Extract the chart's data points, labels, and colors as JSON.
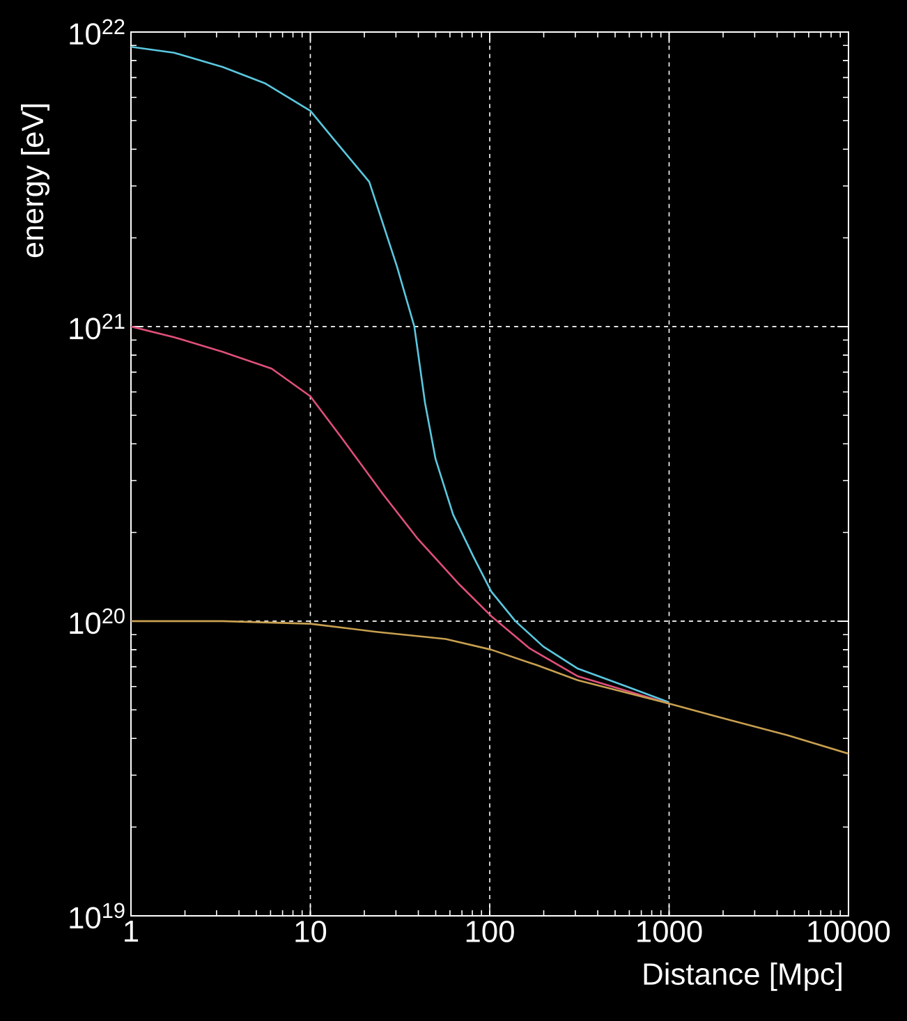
{
  "chart_data": {
    "type": "line",
    "xlabel": "Distance [Mpc]",
    "ylabel": "energy [eV]",
    "log": "xy",
    "grid": true,
    "line_style": "solid",
    "xlim": [
      1,
      10000
    ],
    "ylim": [
      1e+19,
      1e+22
    ],
    "xticks": [
      1,
      10,
      100,
      1000,
      10000
    ],
    "yticks": [
      {
        "value": 1e+19,
        "label": "10$^{19}$"
      },
      {
        "value": 1e+20,
        "label": "10$^{20}$"
      },
      {
        "value": 1e+21,
        "label": "10$^{21}$"
      },
      {
        "value": 1e+22,
        "label": "10$^{22}$"
      }
    ],
    "series": [
      {
        "color": "#5bc8e0",
        "x": [
          1,
          1.74,
          3.25,
          5.57,
          10,
          13.6,
          21.3,
          30.4,
          38,
          43.6,
          49.9,
          62.5,
          81.3,
          102,
          139,
          199,
          310,
          580,
          1000
        ],
        "values": [
          8.9e+21,
          8.5e+21,
          7.6e+21,
          6.7e+21,
          5.4e+21,
          4.3e+21,
          3.1e+21,
          1.6e+21,
          1e+21,
          5.5e+20,
          3.55e+20,
          2.3e+20,
          1.65e+20,
          1.26e+20,
          1e+20,
          8.2e+19,
          6.9e+19,
          6e+19,
          5.3e+19
        ]
      },
      {
        "color": "#e0507a",
        "x": [
          1,
          1.74,
          3.25,
          6.08,
          10,
          14.9,
          25.4,
          39.8,
          67.9,
          102,
          166,
          310,
          1000
        ],
        "values": [
          1e+21,
          9.2e+20,
          8.2e+20,
          7.2e+20,
          5.8e+20,
          4.2e+20,
          2.7e+20,
          1.9e+20,
          1.33e+20,
          1.04e+20,
          8.1e+19,
          6.5e+19,
          5.25e+19
        ]
      },
      {
        "color": "#c8a050",
        "x": [
          1,
          3.25,
          10,
          23.3,
          56.8,
          102,
          182,
          310,
          1000,
          2230,
          4580,
          10000
        ],
        "values": [
          1e+20,
          1e+20,
          9.8e+19,
          9.2e+19,
          8.7e+19,
          8e+19,
          7.1e+19,
          6.3e+19,
          5.25e+19,
          4.6e+19,
          4.1e+19,
          3.55e+19
        ]
      }
    ]
  }
}
